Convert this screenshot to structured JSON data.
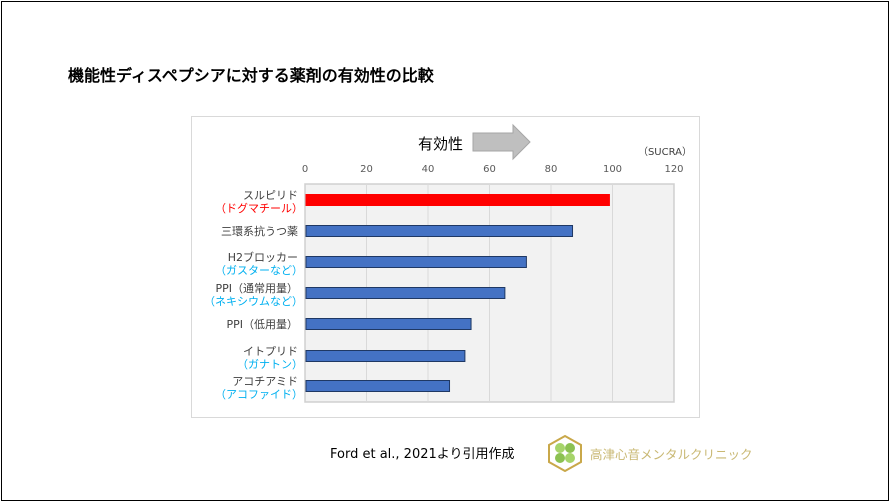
{
  "title": "機能性ディスペプシアに対する薬剤の有効性の比較",
  "citation": "Ford et al., 2021より引用作成",
  "clinic_name": "高津心音メンタルクリニック",
  "chart_data": {
    "type": "bar",
    "orientation": "horizontal",
    "arrow_label": "有効性",
    "unit_label": "（SUCRA）",
    "xlim": [
      0,
      120
    ],
    "xticks": [
      0,
      20,
      40,
      60,
      80,
      100,
      120
    ],
    "grid": true,
    "categories": [
      {
        "name": "スルピリド",
        "sub": "（ドグマチール）",
        "value": 99,
        "color": "#ff0000",
        "sub_color": "#ff0000"
      },
      {
        "name": "三環系抗うつ薬",
        "sub": "",
        "value": 87,
        "color": "#4472c4",
        "sub_color": "#00b0f0"
      },
      {
        "name": "H2ブロッカー",
        "sub": "（ガスターなど）",
        "value": 72,
        "color": "#4472c4",
        "sub_color": "#00b0f0"
      },
      {
        "name": "PPI（通常用量）",
        "sub": "（ネキシウムなど）",
        "value": 65,
        "color": "#4472c4",
        "sub_color": "#00b0f0"
      },
      {
        "name": "PPI（低用量）",
        "sub": "",
        "value": 54,
        "color": "#4472c4",
        "sub_color": "#00b0f0"
      },
      {
        "name": "イトプリド",
        "sub": "（ガナトン）",
        "value": 52,
        "color": "#4472c4",
        "sub_color": "#00b0f0"
      },
      {
        "name": "アコチアミド",
        "sub": "（アコファイド）",
        "value": 47,
        "color": "#4472c4",
        "sub_color": "#00b0f0"
      }
    ]
  }
}
